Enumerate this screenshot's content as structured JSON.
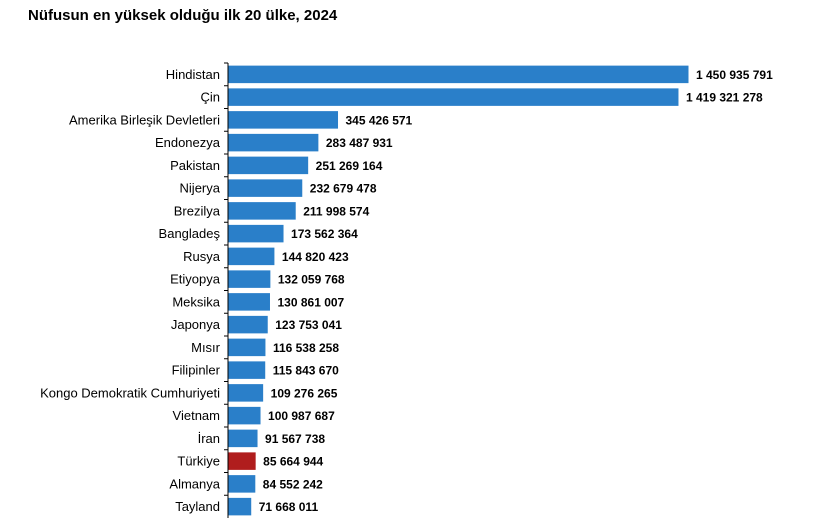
{
  "chart_data": {
    "type": "bar",
    "orientation": "horizontal",
    "title": "Nüfusun en yüksek olduğu ilk 20 ülke, 2024",
    "categories": [
      "Hindistan",
      "Çin",
      "Amerika Birleşik Devletleri",
      "Endonezya",
      "Pakistan",
      "Nijerya",
      "Brezilya",
      "Bangladeş",
      "Rusya",
      "Etiyopya",
      "Meksika",
      "Japonya",
      "Mısır",
      "Filipinler",
      "Kongo Demokratik Cumhuriyeti",
      "Vietnam",
      "İran",
      "Türkiye",
      "Almanya",
      "Tayland"
    ],
    "values": [
      1450935791,
      1419321278,
      345426571,
      283487931,
      251269164,
      232679478,
      211998574,
      173562364,
      144820423,
      132059768,
      130861007,
      123753041,
      116538258,
      115843670,
      109276265,
      100987687,
      91567738,
      85664944,
      84552242,
      71668011
    ],
    "value_labels": [
      "1 450 935 791",
      "1 419 321 278",
      "345 426 571",
      "283 487 931",
      "251 269 164",
      "232 679 478",
      "211 998 574",
      "173 562 364",
      "144 820 423",
      "132 059 768",
      "130 861 007",
      "123 753 041",
      "116 538 258",
      "115 843 670",
      "109 276 265",
      "100 987 687",
      "91 567 738",
      "85 664 944",
      "84 552 242",
      "71 668 011"
    ],
    "highlight": "Türkiye",
    "colors": {
      "bar": "#2a7fc9",
      "highlight": "#b01d1d",
      "axis": "#000000"
    },
    "xlabel": "",
    "ylabel": "",
    "grid": false,
    "legend": "none"
  }
}
